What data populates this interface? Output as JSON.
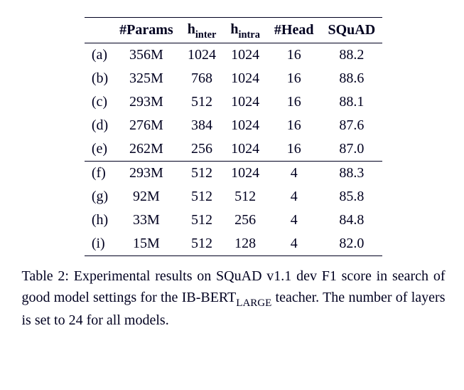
{
  "columns": {
    "params": "#Params",
    "hinter_h": "h",
    "hinter_sub": "inter",
    "hintra_h": "h",
    "hintra_sub": "intra",
    "head": "#Head",
    "squad": "SQuAD"
  },
  "rows": [
    {
      "label": "(a)",
      "params": "356M",
      "hinter": "1024",
      "hintra": "1024",
      "head": "16",
      "squad": "88.2"
    },
    {
      "label": "(b)",
      "params": "325M",
      "hinter": "768",
      "hintra": "1024",
      "head": "16",
      "squad": "88.6"
    },
    {
      "label": "(c)",
      "params": "293M",
      "hinter": "512",
      "hintra": "1024",
      "head": "16",
      "squad": "88.1"
    },
    {
      "label": "(d)",
      "params": "276M",
      "hinter": "384",
      "hintra": "1024",
      "head": "16",
      "squad": "87.6"
    },
    {
      "label": "(e)",
      "params": "262M",
      "hinter": "256",
      "hintra": "1024",
      "head": "16",
      "squad": "87.0"
    },
    {
      "label": "(f)",
      "params": "293M",
      "hinter": "512",
      "hintra": "1024",
      "head": "4",
      "squad": "88.3"
    },
    {
      "label": "(g)",
      "params": "92M",
      "hinter": "512",
      "hintra": "512",
      "head": "4",
      "squad": "85.8"
    },
    {
      "label": "(h)",
      "params": "33M",
      "hinter": "512",
      "hintra": "256",
      "head": "4",
      "squad": "84.8"
    },
    {
      "label": "(i)",
      "params": "15M",
      "hinter": "512",
      "hintra": "128",
      "head": "4",
      "squad": "82.0"
    }
  ],
  "caption": {
    "pre": "Table 2:  Experimental results on SQuAD v1.1 dev F1 score in search of good model settings for the IB-BERT",
    "sub": "LARGE",
    "post": " teacher.  The number of layers is set to 24 for all models."
  }
}
